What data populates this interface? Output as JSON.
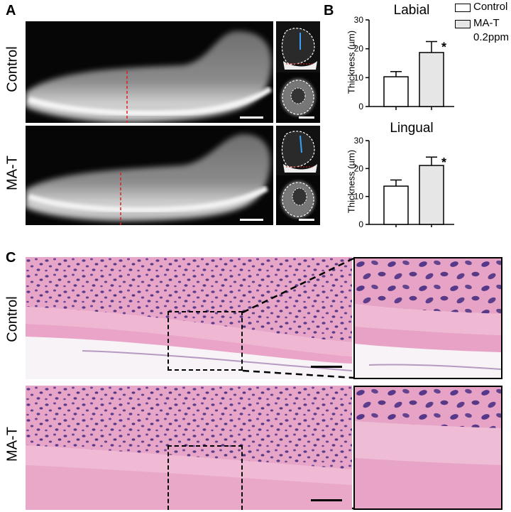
{
  "panels": {
    "a": "A",
    "b": "B",
    "c": "C"
  },
  "rows": {
    "control": "Control",
    "treated": "MA-T"
  },
  "legend": {
    "control": "Control",
    "treated_line1": "MA-T",
    "treated_line2": "0.2ppm"
  },
  "colors": {
    "control_bar": "#ffffff",
    "treated_bar": "#e6e6e6",
    "he_pink": "#e9a2c6",
    "nuclei": "#5a3a8a",
    "measure_line": "#e02020"
  },
  "chart_data": [
    {
      "type": "bar",
      "title": "Labial",
      "categories": [
        "Control",
        "MA-T 0.2ppm"
      ],
      "values": [
        10.3,
        18.7
      ],
      "errors": [
        1.8,
        3.8
      ],
      "significance": [
        "",
        "*"
      ],
      "ylabel": "Thickness (µm)",
      "ylim": [
        0,
        30
      ],
      "yticks": [
        "0",
        "10",
        "20",
        "30"
      ]
    },
    {
      "type": "bar",
      "title": "Lingual",
      "categories": [
        "Control",
        "MA-T 0.2ppm"
      ],
      "values": [
        13.7,
        21.1
      ],
      "errors": [
        2.2,
        3.0
      ],
      "significance": [
        "",
        "*"
      ],
      "ylabel": "Thickness (µm)",
      "ylim": [
        0,
        30
      ],
      "yticks": [
        "0",
        "10",
        "20",
        "30"
      ]
    }
  ]
}
